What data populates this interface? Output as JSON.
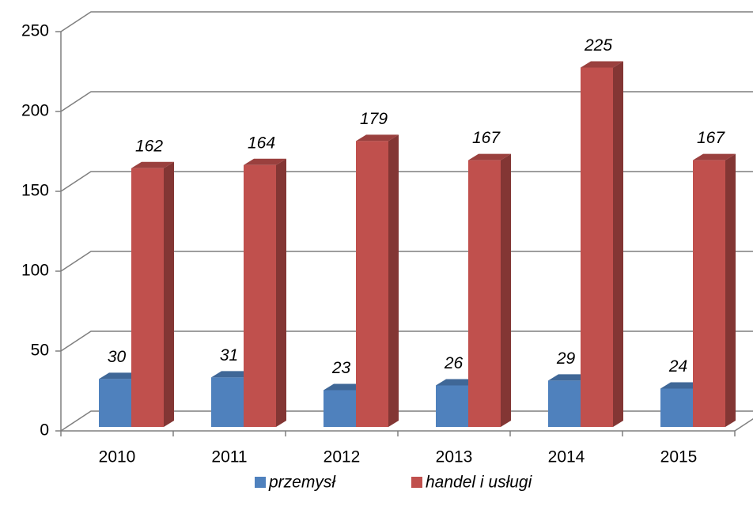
{
  "chart_data": {
    "type": "bar3d",
    "categories": [
      "2010",
      "2011",
      "2012",
      "2013",
      "2014",
      "2015"
    ],
    "series": [
      {
        "name": "przemysł",
        "color": "#4f81bd",
        "values": [
          30,
          31,
          23,
          26,
          29,
          24
        ]
      },
      {
        "name": "handel i usługi",
        "color": "#c0504d",
        "values": [
          162,
          164,
          179,
          167,
          225,
          167
        ]
      }
    ],
    "ylim": [
      0,
      250
    ],
    "yticks": [
      0,
      50,
      100,
      150,
      200,
      250
    ],
    "grid": true,
    "legend": "bottom"
  }
}
